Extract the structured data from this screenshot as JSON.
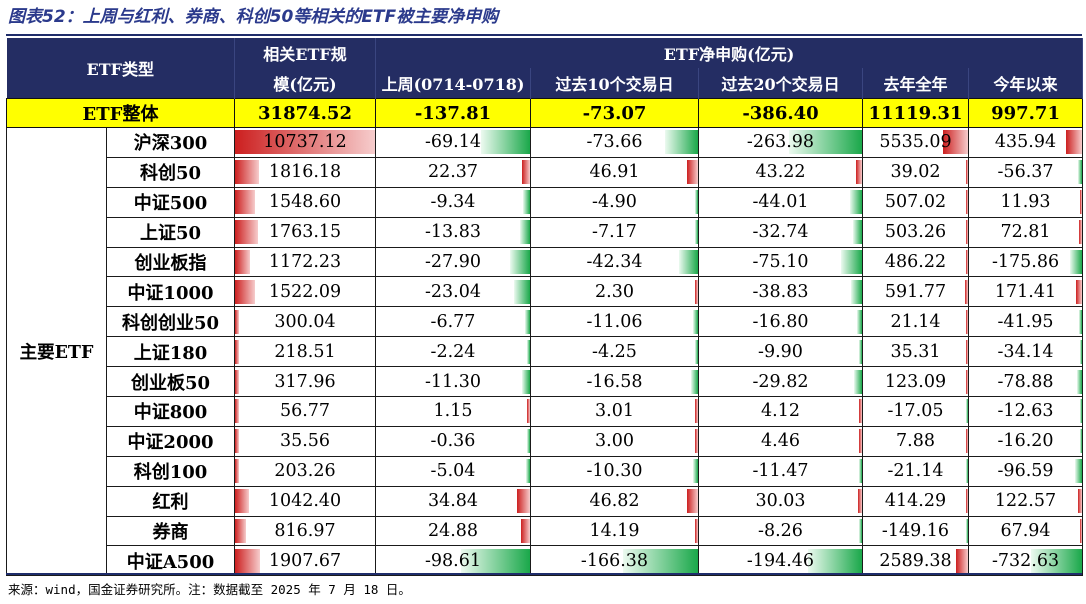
{
  "title": "图表52：上周与红利、券商、科创50等相关的ETF被主要净申购",
  "header": {
    "etf_type": "ETF类型",
    "scale_line1": "相关ETF规",
    "scale_line2": "模(亿元)",
    "net_buy": "ETF净申购(亿元)",
    "last_week": "上周(0714-0718)",
    "past10": "过去10个交易日",
    "past20": "过去20个交易日",
    "last_year": "去年全年",
    "ytd": "今年以来"
  },
  "total": {
    "label": "ETF整体",
    "scale": "31874.52",
    "last_week": "-137.81",
    "past10": "-73.07",
    "past20": "-386.40",
    "last_year": "11119.31",
    "ytd": "997.71"
  },
  "group_label": "主要ETF",
  "rows": [
    {
      "name": "沪深300",
      "scale": "10737.12",
      "w": "-69.14",
      "d10": "-73.66",
      "d20": "-263.98",
      "y": "5535.09",
      "ytd": "435.94"
    },
    {
      "name": "科创50",
      "scale": "1816.18",
      "w": "22.37",
      "d10": "46.91",
      "d20": "43.22",
      "y": "39.02",
      "ytd": "-56.37"
    },
    {
      "name": "中证500",
      "scale": "1548.60",
      "w": "-9.34",
      "d10": "-4.90",
      "d20": "-44.01",
      "y": "507.02",
      "ytd": "11.93"
    },
    {
      "name": "上证50",
      "scale": "1763.15",
      "w": "-13.83",
      "d10": "-7.17",
      "d20": "-32.74",
      "y": "503.26",
      "ytd": "72.81"
    },
    {
      "name": "创业板指",
      "scale": "1172.23",
      "w": "-27.90",
      "d10": "-42.34",
      "d20": "-75.10",
      "y": "486.22",
      "ytd": "-175.86"
    },
    {
      "name": "中证1000",
      "scale": "1522.09",
      "w": "-23.04",
      "d10": "2.30",
      "d20": "-38.83",
      "y": "591.77",
      "ytd": "171.41"
    },
    {
      "name": "科创创业50",
      "scale": "300.04",
      "w": "-6.77",
      "d10": "-11.06",
      "d20": "-16.80",
      "y": "21.14",
      "ytd": "-41.95"
    },
    {
      "name": "上证180",
      "scale": "218.51",
      "w": "-2.24",
      "d10": "-4.25",
      "d20": "-9.90",
      "y": "35.31",
      "ytd": "-34.14"
    },
    {
      "name": "创业板50",
      "scale": "317.96",
      "w": "-11.30",
      "d10": "-16.58",
      "d20": "-29.82",
      "y": "123.09",
      "ytd": "-78.88"
    },
    {
      "name": "中证800",
      "scale": "56.77",
      "w": "1.15",
      "d10": "3.01",
      "d20": "4.12",
      "y": "-17.05",
      "ytd": "-12.63"
    },
    {
      "name": "中证2000",
      "scale": "35.56",
      "w": "-0.36",
      "d10": "3.00",
      "d20": "4.46",
      "y": "7.88",
      "ytd": "-16.20"
    },
    {
      "name": "科创100",
      "scale": "203.26",
      "w": "-5.04",
      "d10": "-10.30",
      "d20": "-11.47",
      "y": "-21.14",
      "ytd": "-96.59"
    },
    {
      "name": "红利",
      "scale": "1042.40",
      "w": "34.84",
      "d10": "46.82",
      "d20": "30.03",
      "y": "414.29",
      "ytd": "122.57"
    },
    {
      "name": "券商",
      "scale": "816.97",
      "w": "24.88",
      "d10": "14.19",
      "d20": "-8.26",
      "y": "-149.16",
      "ytd": "67.94"
    },
    {
      "name": "中证A500",
      "scale": "1907.67",
      "w": "-98.61",
      "d10": "-166.38",
      "d20": "-194.46",
      "y": "2589.38",
      "ytd": "-732.63"
    }
  ],
  "source": "来源：wind，国金证券研究所。注：数据截至 2025 年 7 月 18 日。",
  "colors": {
    "header_bg": "#242d63",
    "total_bg": "#ffff00",
    "positive_bar": "#cc1f1f",
    "negative_bar": "#1aa84a"
  }
}
